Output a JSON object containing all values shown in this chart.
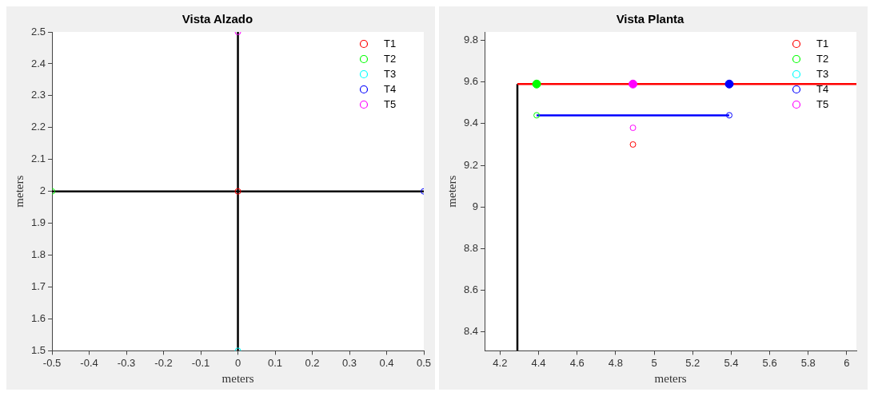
{
  "chart_data": [
    {
      "type": "scatter",
      "title": "Vista Alzado",
      "xlabel": "meters",
      "ylabel": "meters",
      "xlim": [
        -0.5,
        0.5
      ],
      "ylim": [
        1.5,
        2.5
      ],
      "xticks": [
        -0.5,
        -0.4,
        -0.3,
        -0.2,
        -0.1,
        0,
        0.1,
        0.2,
        0.3,
        0.4,
        0.5
      ],
      "yticks": [
        1.5,
        1.6,
        1.7,
        1.8,
        1.9,
        2,
        2.1,
        2.2,
        2.3,
        2.4,
        2.5
      ],
      "grid": false,
      "legend": "top right",
      "marker": "circle",
      "series": [
        {
          "type": "line",
          "marker": "none",
          "color": "#000000",
          "x": [
            -0.5,
            0.5
          ],
          "values": [
            2,
            2
          ]
        },
        {
          "type": "line",
          "marker": "none",
          "color": "#000000",
          "x": [
            0,
            0
          ],
          "values": [
            1.5,
            2.5
          ]
        },
        {
          "name": "T1",
          "color": "#ff0000",
          "x": [
            0
          ],
          "values": [
            2
          ]
        },
        {
          "name": "T2",
          "color": "#00ff00",
          "x": [
            -0.5
          ],
          "values": [
            2
          ]
        },
        {
          "name": "T3",
          "color": "#00ffff",
          "x": [
            0
          ],
          "values": [
            1.5
          ]
        },
        {
          "name": "T4",
          "color": "#0000ff",
          "x": [
            0.5
          ],
          "values": [
            2
          ]
        },
        {
          "name": "T5",
          "color": "#ff00ff",
          "x": [
            0
          ],
          "values": [
            2.5
          ]
        }
      ]
    },
    {
      "type": "scatter",
      "title": "Vista Planta",
      "xlabel": "meters",
      "ylabel": "meters",
      "xlim": [
        4.12,
        6.05
      ],
      "ylim": [
        8.31,
        9.84
      ],
      "xticks": [
        4.2,
        4.4,
        4.6,
        4.8,
        5,
        5.2,
        5.4,
        5.6,
        5.8,
        6
      ],
      "yticks": [
        8.4,
        8.6,
        8.8,
        9,
        9.2,
        9.4,
        9.6,
        9.8
      ],
      "grid": false,
      "legend": "top right",
      "marker": "circle",
      "series": [
        {
          "type": "line",
          "marker": "none",
          "color": "#ff0000",
          "x": [
            4.29,
            6.05
          ],
          "values": [
            9.59,
            9.59
          ]
        },
        {
          "type": "line",
          "marker": "none",
          "color": "#000000",
          "x": [
            4.29,
            4.29
          ],
          "values": [
            8.31,
            9.59
          ]
        },
        {
          "type": "line",
          "marker": "none",
          "color": "#0000ff",
          "x": [
            4.39,
            5.39
          ],
          "values": [
            9.44,
            9.44
          ]
        },
        {
          "name": "T1",
          "color": "#ff0000",
          "x": [
            4.89
          ],
          "values": [
            9.3
          ]
        },
        {
          "name": "T2",
          "color": "#00ff00",
          "x": [
            4.39
          ],
          "values": [
            9.44
          ]
        },
        {
          "name": "T3",
          "color": "#00ffff"
        },
        {
          "name": "T4",
          "color": "#0000ff",
          "x": [
            5.39
          ],
          "values": [
            9.44
          ]
        },
        {
          "name": "T5",
          "color": "#ff00ff",
          "x": [
            4.89
          ],
          "values": [
            9.38
          ]
        },
        {
          "color": "#00ff00",
          "x": [
            4.39
          ],
          "values": [
            9.59
          ]
        },
        {
          "color": "#ff00ff",
          "x": [
            4.89
          ],
          "values": [
            9.59
          ]
        },
        {
          "color": "#0000ff",
          "x": [
            5.39
          ],
          "values": [
            9.59
          ]
        }
      ]
    }
  ]
}
